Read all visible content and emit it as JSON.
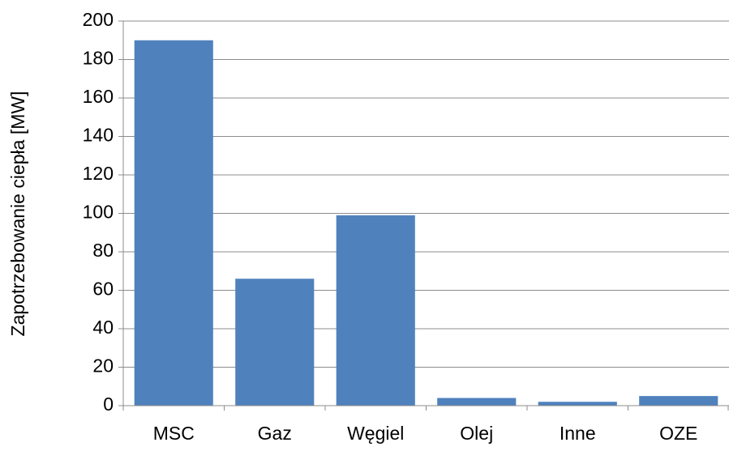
{
  "chart_data": {
    "type": "bar",
    "y_label": "Zapotrzebowanie ciepła [MW]",
    "categories": [
      "MSC",
      "Gaz",
      "Węgiel",
      "Olej",
      "Inne",
      "OZE"
    ],
    "values": [
      190,
      66,
      99,
      4,
      2,
      5
    ],
    "color": "#4f81bd",
    "ylim": [
      0,
      200
    ],
    "yticks": [
      0,
      20,
      40,
      60,
      80,
      100,
      120,
      140,
      160,
      180,
      200
    ],
    "grid": true
  }
}
